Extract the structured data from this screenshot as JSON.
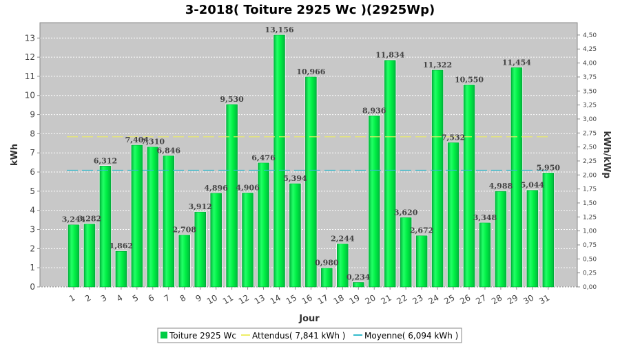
{
  "chart_data": {
    "type": "bar",
    "title": "3-2018( Toiture 2925 Wc )(2925Wp)",
    "xlabel": "Jour",
    "ylabel": "kWh",
    "ylabel_right": "kWh/kWp",
    "categories": [
      "1",
      "2",
      "3",
      "4",
      "5",
      "6",
      "7",
      "8",
      "9",
      "10",
      "11",
      "12",
      "13",
      "14",
      "15",
      "16",
      "17",
      "18",
      "19",
      "20",
      "21",
      "22",
      "23",
      "24",
      "25",
      "26",
      "27",
      "28",
      "29",
      "30",
      "31"
    ],
    "series": [
      {
        "name": "Toiture 2925 Wc",
        "values": [
          3.244,
          3.282,
          6.312,
          1.862,
          7.404,
          7.31,
          6.846,
          2.708,
          3.912,
          4.896,
          9.53,
          4.906,
          6.476,
          13.156,
          5.394,
          10.966,
          0.98,
          2.244,
          0.234,
          8.936,
          11.834,
          3.62,
          2.672,
          11.322,
          7.532,
          10.55,
          3.348,
          4.988,
          11.454,
          5.044,
          5.95
        ],
        "labels": [
          "3,244",
          "3,282",
          "6,312",
          "1,862",
          "7,404",
          "7,310",
          "6,846",
          "2,708",
          "3,912",
          "4,896",
          "9,530",
          "4,906",
          "6,476",
          "13,156",
          "5,394",
          "10,966",
          "0,980",
          "2,244",
          "0,234",
          "8,936",
          "11,834",
          "3,620",
          "2,672",
          "11,322",
          "7,532",
          "10,550",
          "3,348",
          "4,988",
          "11,454",
          "5,044",
          "5,950"
        ],
        "color": "#00cc44"
      }
    ],
    "reference_lines": [
      {
        "name": "Attendus( 7,841 kWh )",
        "value": 7.841,
        "color": "#eeee66"
      },
      {
        "name": "Moyenne( 6,094 kWh )",
        "value": 6.094,
        "color": "#33bbcc"
      }
    ],
    "ylim": [
      0,
      13.8
    ],
    "yticks": [
      "0",
      "1",
      "2",
      "3",
      "4",
      "5",
      "6",
      "7",
      "8",
      "9",
      "10",
      "11",
      "12",
      "13"
    ],
    "ylim_right": [
      0,
      4.72
    ],
    "yticks_right": [
      "0,00",
      "0,25",
      "0,50",
      "0,75",
      "1,00",
      "1,25",
      "1,50",
      "1,75",
      "2,00",
      "2,25",
      "2,50",
      "2,75",
      "3,00",
      "3,25",
      "3,50",
      "3,75",
      "4,00",
      "4,25",
      "4,50"
    ],
    "grid": true,
    "plot_background": "#c8c8c8",
    "legend_position": "bottom"
  }
}
